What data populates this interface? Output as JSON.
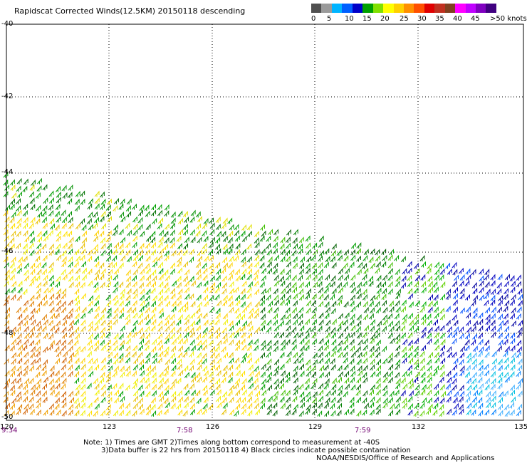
{
  "title": "Rapidscat Corrected Winds(12.5KM) 20150118 descending",
  "colorbar": {
    "colors": [
      "#505050",
      "#9a9a9a",
      "#00b4ff",
      "#0060ff",
      "#0000c8",
      "#00a000",
      "#80e000",
      "#ffff00",
      "#ffd000",
      "#ff9000",
      "#ff5000",
      "#e00000",
      "#c03020",
      "#804020",
      "#ff00ff",
      "#c000ff",
      "#8000c0",
      "#400080"
    ],
    "labels": [
      "0",
      "5",
      "10",
      "15",
      "20",
      "25",
      "30",
      "35",
      "40",
      "45",
      ">50 knots"
    ]
  },
  "map": {
    "lat_labels": [
      "-40",
      "-42",
      "-44",
      "-46",
      "-48",
      "-50"
    ],
    "lon_labels": [
      "120",
      "123",
      "126",
      "129",
      "132",
      "135"
    ],
    "lat_range": [
      -50,
      -40
    ],
    "lon_range": [
      120,
      135
    ],
    "times": [
      "9:34",
      "7:58",
      "7:59"
    ]
  },
  "notes": {
    "line1": "Note: 1) Times are GMT 2)Times along bottom correspond to measurement at -40S",
    "line2": "3)Data buffer is 22 hrs from 20150118 4) Black circles indicate possible contamination",
    "credit": "NOAA/NESDIS/Office of Research and Applications"
  }
}
